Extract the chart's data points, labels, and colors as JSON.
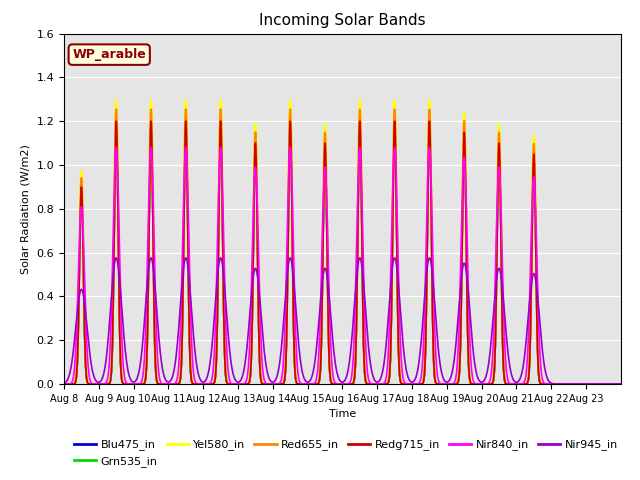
{
  "title": "Incoming Solar Bands",
  "xlabel": "Time",
  "ylabel": "Solar Radiation (W/m2)",
  "annotation": "WP_arable",
  "ylim": [
    0,
    1.6
  ],
  "num_days": 16,
  "background_color": "#e5e5e5",
  "series": [
    {
      "name": "Blu475_in",
      "color": "#0000cc",
      "lw": 1.2,
      "peak_scale": 1.0,
      "sigma": 0.055
    },
    {
      "name": "Grn535_in",
      "color": "#00dd00",
      "lw": 1.2,
      "peak_scale": 1.02,
      "sigma": 0.055
    },
    {
      "name": "Yel580_in",
      "color": "#ffff00",
      "lw": 1.5,
      "peak_scale": 1.08,
      "sigma": 0.06
    },
    {
      "name": "Red655_in",
      "color": "#ff8800",
      "lw": 1.5,
      "peak_scale": 1.045,
      "sigma": 0.058
    },
    {
      "name": "Redg715_in",
      "color": "#cc0000",
      "lw": 1.2,
      "peak_scale": 1.0,
      "sigma": 0.056
    },
    {
      "name": "Nir840_in",
      "color": "#ff00ff",
      "lw": 1.2,
      "peak_scale": 0.9,
      "sigma": 0.09
    },
    {
      "name": "Nir945_in",
      "color": "#9900cc",
      "lw": 1.2,
      "peak_scale": 0.48,
      "sigma": 0.16
    }
  ],
  "base_peaks": [
    0.9,
    1.2,
    1.2,
    1.2,
    1.2,
    1.1,
    1.2,
    1.1,
    1.2,
    1.2,
    1.2,
    1.15,
    1.1,
    1.05,
    0.0,
    0.0
  ],
  "tick_labels": [
    "Aug 8",
    "Aug 9",
    "Aug 10",
    "Aug 11",
    "Aug 12",
    "Aug 13",
    "Aug 14",
    "Aug 15",
    "Aug 16",
    "Aug 17",
    "Aug 18",
    "Aug 19",
    "Aug 20",
    "Aug 21",
    "Aug 22",
    "Aug 23"
  ]
}
